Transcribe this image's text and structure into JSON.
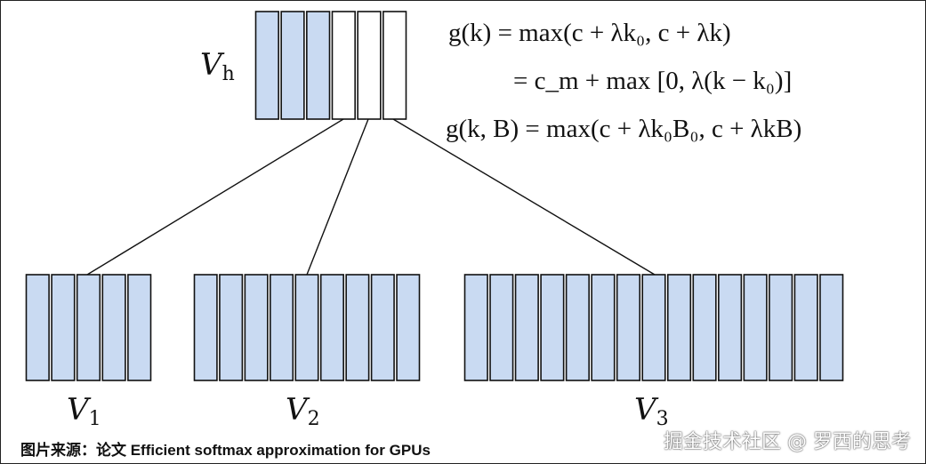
{
  "labels": {
    "vh": {
      "symbol": "V",
      "sub": "h"
    },
    "v1": {
      "symbol": "V",
      "sub": "1"
    },
    "v2": {
      "symbol": "V",
      "sub": "2"
    },
    "v3": {
      "symbol": "V",
      "sub": "3"
    }
  },
  "blocks": {
    "head": {
      "cells": 6,
      "filled": 3
    },
    "v1": {
      "cells": 5,
      "filled": 5
    },
    "v2": {
      "cells": 9,
      "filled": 9
    },
    "v3": {
      "cells": 15,
      "filled": 15
    }
  },
  "equations": [
    "g(k) = max(c + λk₀, c + λk)",
    "= c_m + max [0, λ(k − k₀)]",
    "g(k, B) = max(c + λk₀B₀, c + λkB)"
  ],
  "caption": "图片来源：论文 Efficient softmax approximation for GPUs",
  "watermark": "掘金技术社区 @ 罗西的思考",
  "colors": {
    "cell_fill": "#c9daf2",
    "stroke": "#111111"
  }
}
